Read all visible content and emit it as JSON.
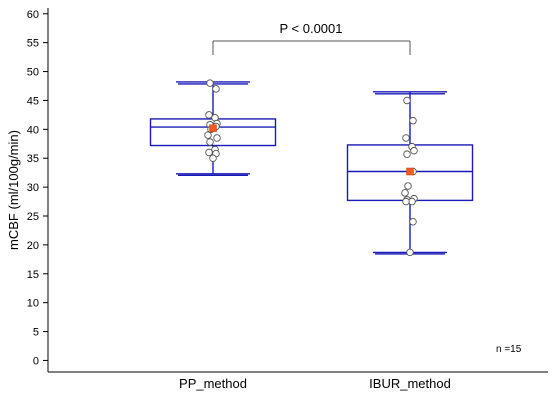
{
  "chart_data": {
    "type": "box",
    "ylabel": "mCBF (ml/100g/min)",
    "ylim": [
      -2,
      61
    ],
    "yticks": [
      0,
      5,
      10,
      15,
      20,
      25,
      30,
      35,
      40,
      45,
      50,
      55,
      60
    ],
    "categories": [
      "PP_method",
      "IBUR_method"
    ],
    "boxes": [
      {
        "category": "PP_method",
        "whisker_low": 32.3,
        "q1": 37.2,
        "median": 40.4,
        "q3": 41.8,
        "whisker_high": 48.2,
        "mean": 40.2,
        "points": [
          48.0,
          47.0,
          42.5,
          42.0,
          41.0,
          40.8,
          40.5,
          40.0,
          39.0,
          38.5,
          37.8,
          36.5,
          36.0,
          35.8,
          35.0
        ]
      },
      {
        "category": "IBUR_method",
        "whisker_low": 18.7,
        "q1": 27.7,
        "median": 32.7,
        "q3": 37.3,
        "whisker_high": 46.5,
        "mean": 32.7,
        "points": [
          45.0,
          41.5,
          38.5,
          37.0,
          36.3,
          35.7,
          32.7,
          30.2,
          29.0,
          28.0,
          27.8,
          27.5,
          27.5,
          24.0,
          18.7
        ]
      }
    ],
    "annotations": {
      "significance": "P < 0.0001",
      "sample_size": "n =15"
    },
    "colors": {
      "box": "#1a1ab8",
      "mean_marker": "#f05a1e",
      "point_fill": "#ffffff",
      "point_stroke": "#555555",
      "axis": "#000000"
    }
  }
}
